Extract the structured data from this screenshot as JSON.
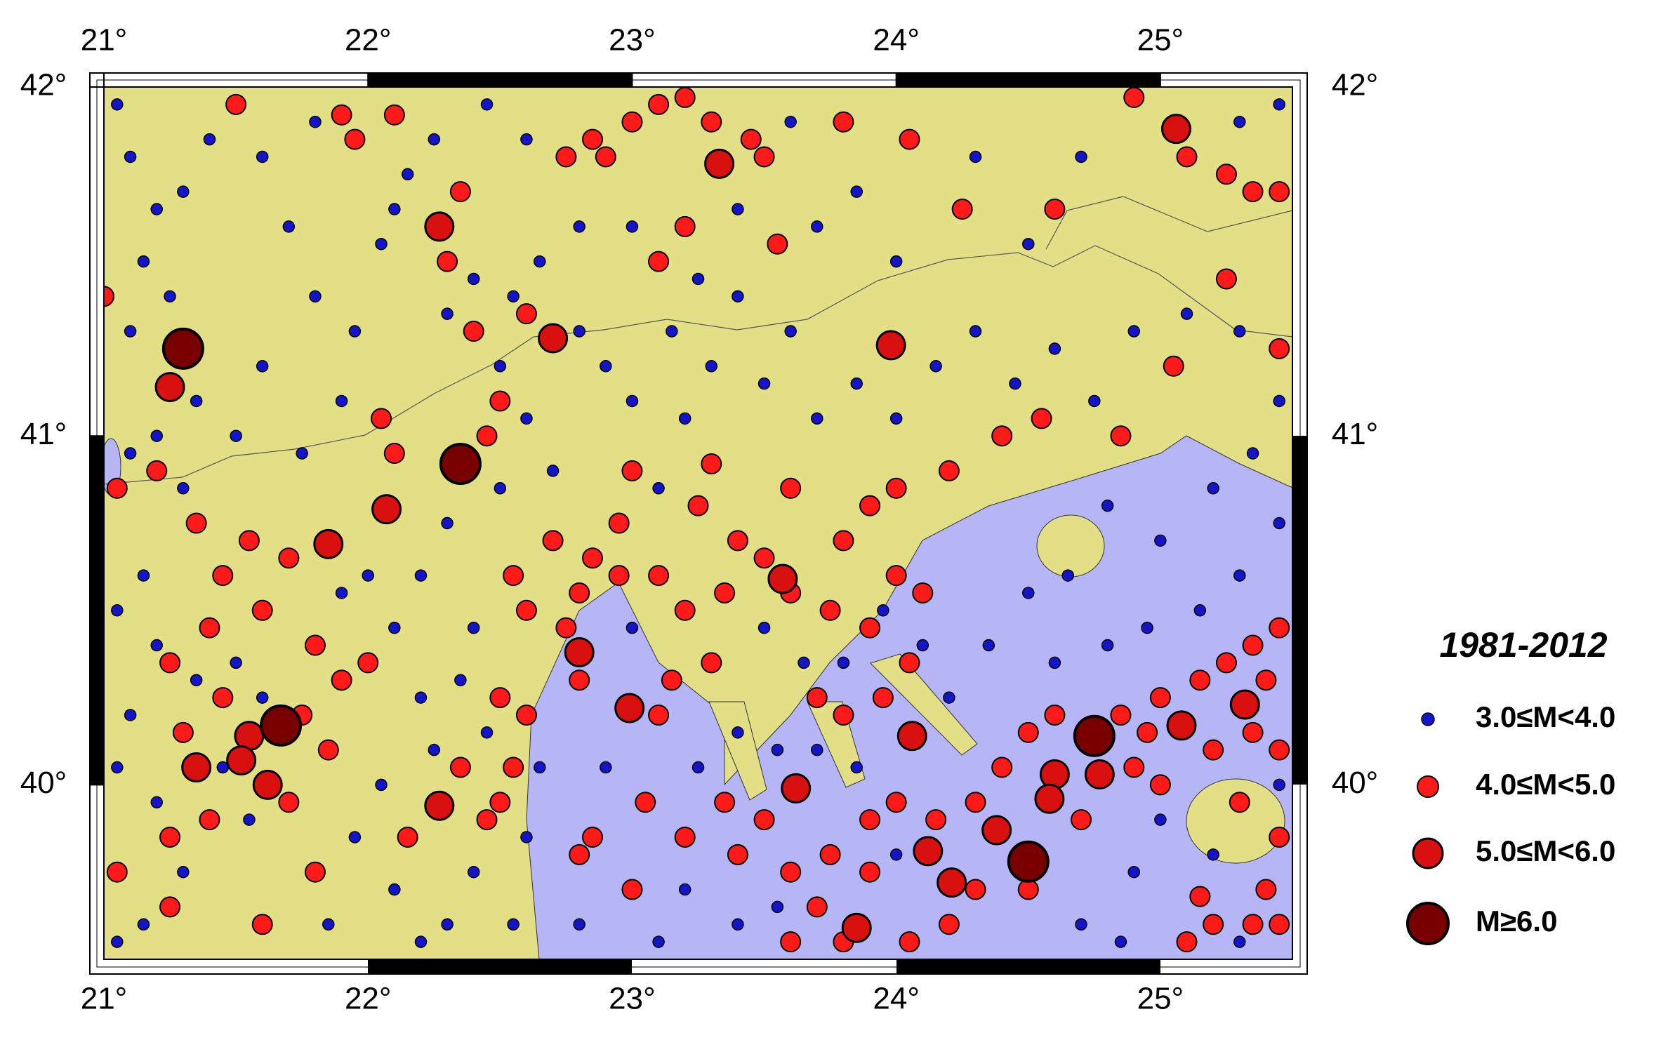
{
  "chart_data": {
    "type": "scatter",
    "legend_title": "1981-2012",
    "legend": "right",
    "xlim": [
      21,
      25.5
    ],
    "ylim": [
      39.5,
      42
    ],
    "xticks": [
      {
        "value": 21,
        "label": "21°"
      },
      {
        "value": 22,
        "label": "22°"
      },
      {
        "value": 23,
        "label": "23°"
      },
      {
        "value": 24,
        "label": "24°"
      },
      {
        "value": 25,
        "label": "25°"
      }
    ],
    "yticks": [
      {
        "value": 40,
        "label": "40°"
      },
      {
        "value": 41,
        "label": "41°"
      },
      {
        "value": 42,
        "label": "42°"
      }
    ],
    "series": [
      {
        "name": "3.0≤M<4.0",
        "color": "#1414c8",
        "x": [
          21.05,
          21.1,
          21.2,
          21.15,
          21.25,
          21.1,
          21.35,
          21.2,
          21.1,
          21.3,
          21.15,
          21.05,
          21.2,
          21.35,
          21.1,
          21.05,
          21.2,
          21.3,
          21.15,
          21.05,
          21.5,
          21.6,
          21.45,
          21.55,
          21.9,
          22.0,
          22.1,
          22.2,
          22.25,
          22.05,
          21.95,
          22.1,
          22.3,
          22.4,
          22.2,
          21.85,
          21.7,
          21.8,
          21.6,
          21.5,
          21.75,
          21.9,
          21.95,
          22.05,
          22.15,
          22.25,
          22.1,
          22.3,
          22.4,
          22.5,
          22.55,
          22.65,
          22.8,
          22.9,
          22.6,
          22.7,
          22.5,
          22.3,
          22.2,
          22.4,
          22.35,
          22.45,
          22.65,
          22.6,
          22.55,
          22.8,
          22.9,
          23.0,
          23.1,
          23.2,
          23.0,
          23.15,
          23.3,
          23.4,
          23.5,
          23.6,
          23.7,
          23.85,
          24.0,
          24.15,
          24.3,
          24.45,
          24.6,
          24.75,
          24.9,
          25.1,
          25.3,
          25.45,
          25.3,
          25.45,
          24.7,
          24.5,
          24.3,
          24.0,
          23.85,
          23.7,
          23.6,
          23.4,
          23.25,
          23.0,
          22.8,
          22.6,
          22.45,
          21.4,
          21.3,
          21.6,
          21.8,
          23.5,
          23.65,
          23.8,
          23.95,
          24.1,
          24.2,
          24.35,
          24.5,
          24.65,
          24.8,
          25.0,
          25.2,
          25.35,
          25.45,
          25.3,
          25.15,
          24.95,
          24.8,
          24.6,
          23.4,
          23.25,
          23.55,
          23.7,
          23.85,
          24.0,
          23.55,
          23.4,
          23.2,
          23.1,
          24.7,
          24.9,
          25.0,
          25.2,
          25.45,
          25.3,
          24.85
        ],
        "y": [
          41.95,
          41.8,
          41.65,
          41.5,
          41.4,
          41.3,
          41.1,
          41.0,
          40.95,
          40.85,
          40.6,
          40.5,
          40.4,
          40.3,
          40.2,
          40.05,
          39.95,
          39.75,
          39.6,
          39.55,
          40.35,
          40.25,
          40.05,
          39.9,
          40.55,
          40.6,
          40.45,
          40.25,
          40.1,
          40.0,
          39.85,
          39.7,
          39.6,
          39.75,
          39.55,
          39.6,
          41.6,
          41.4,
          41.2,
          41.0,
          40.95,
          41.1,
          41.3,
          41.55,
          41.75,
          41.85,
          41.65,
          41.35,
          41.45,
          41.2,
          41.4,
          41.5,
          41.3,
          41.2,
          41.05,
          40.9,
          40.85,
          40.75,
          40.6,
          40.45,
          40.3,
          40.15,
          40.05,
          39.85,
          39.6,
          39.6,
          40.05,
          40.45,
          40.85,
          41.05,
          41.1,
          41.3,
          41.2,
          41.4,
          41.15,
          41.3,
          41.05,
          41.15,
          41.05,
          41.2,
          41.3,
          41.15,
          41.25,
          41.1,
          41.3,
          41.35,
          41.3,
          41.1,
          41.9,
          41.95,
          41.8,
          41.55,
          41.8,
          41.5,
          41.7,
          41.6,
          41.9,
          41.65,
          41.45,
          41.6,
          41.6,
          41.85,
          41.95,
          41.85,
          41.7,
          41.8,
          41.9,
          40.45,
          40.35,
          40.35,
          40.5,
          40.4,
          40.25,
          40.4,
          40.55,
          40.6,
          40.8,
          40.7,
          40.85,
          40.95,
          40.75,
          40.6,
          40.5,
          40.45,
          40.4,
          40.35,
          40.15,
          40.05,
          40.1,
          40.1,
          40.05,
          39.8,
          39.65,
          39.6,
          39.7,
          39.55,
          39.6,
          39.75,
          39.9,
          39.8,
          40.0,
          39.55,
          39.55
        ]
      },
      {
        "name": "4.0≤M<5.0",
        "color": "#ff1a1a",
        "x": [
          21.0,
          21.05,
          21.2,
          21.35,
          21.45,
          21.55,
          21.7,
          21.6,
          21.4,
          21.25,
          21.8,
          21.9,
          21.75,
          21.45,
          21.3,
          21.85,
          21.7,
          21.4,
          21.25,
          21.8,
          21.6,
          21.25,
          21.05,
          22.0,
          22.1,
          22.05,
          22.45,
          22.5,
          22.4,
          22.6,
          22.35,
          22.3,
          21.95,
          21.9,
          22.1,
          21.5,
          22.75,
          22.85,
          23.0,
          23.1,
          23.2,
          23.3,
          23.45,
          23.5,
          22.9,
          23.2,
          23.1,
          23.55,
          23.8,
          24.05,
          24.25,
          24.6,
          24.9,
          25.1,
          25.25,
          25.35,
          25.45,
          25.25,
          25.05,
          25.45,
          24.85,
          24.55,
          24.4,
          24.2,
          24.0,
          23.9,
          23.6,
          23.3,
          23.25,
          23.0,
          22.95,
          22.85,
          22.7,
          22.55,
          22.6,
          22.8,
          22.95,
          23.1,
          23.2,
          23.35,
          23.4,
          23.5,
          23.6,
          23.75,
          23.8,
          24.0,
          24.1,
          23.9,
          24.05,
          23.95,
          23.8,
          23.7,
          23.3,
          23.15,
          23.1,
          22.8,
          22.75,
          22.6,
          22.5,
          22.5,
          22.55,
          22.35,
          22.15,
          22.45,
          22.8,
          22.85,
          23.05,
          23.0,
          23.2,
          23.35,
          23.4,
          23.5,
          23.6,
          23.75,
          23.7,
          23.9,
          23.9,
          24.0,
          24.15,
          24.3,
          24.4,
          24.5,
          24.6,
          24.7,
          24.5,
          24.3,
          24.2,
          24.05,
          23.8,
          23.6,
          24.9,
          24.95,
          25.0,
          25.15,
          25.25,
          25.35,
          25.45,
          25.4,
          25.35,
          25.2,
          25.45,
          25.3,
          25.4,
          25.45,
          25.35,
          25.2,
          25.1,
          25.15,
          25.45,
          25.0,
          24.85
        ],
        "y": [
          41.4,
          40.85,
          40.9,
          40.75,
          40.6,
          40.7,
          40.65,
          40.5,
          40.45,
          40.35,
          40.4,
          40.3,
          40.2,
          40.25,
          40.15,
          40.1,
          39.95,
          39.9,
          39.85,
          39.75,
          39.6,
          39.65,
          39.75,
          40.35,
          40.95,
          41.05,
          41.0,
          41.1,
          41.3,
          41.35,
          41.7,
          41.5,
          41.85,
          41.92,
          41.92,
          41.95,
          41.8,
          41.85,
          41.9,
          41.95,
          41.97,
          41.9,
          41.85,
          41.8,
          41.8,
          41.6,
          41.5,
          41.55,
          41.9,
          41.85,
          41.65,
          41.65,
          41.97,
          41.8,
          41.75,
          41.7,
          41.7,
          41.45,
          41.2,
          41.25,
          41.0,
          41.05,
          41.0,
          40.9,
          40.85,
          40.8,
          40.85,
          40.92,
          40.8,
          40.9,
          40.75,
          40.65,
          40.7,
          40.6,
          40.5,
          40.55,
          40.6,
          40.6,
          40.5,
          40.55,
          40.7,
          40.65,
          40.55,
          40.5,
          40.7,
          40.6,
          40.55,
          40.45,
          40.35,
          40.25,
          40.2,
          40.25,
          40.35,
          40.3,
          40.2,
          40.3,
          40.45,
          40.2,
          40.25,
          39.95,
          40.05,
          40.05,
          39.85,
          39.9,
          39.8,
          39.85,
          39.95,
          39.7,
          39.85,
          39.95,
          39.8,
          39.9,
          39.75,
          39.8,
          39.65,
          39.75,
          39.9,
          39.95,
          39.9,
          39.95,
          40.05,
          40.15,
          40.2,
          39.9,
          39.7,
          39.7,
          39.6,
          39.55,
          39.55,
          39.55,
          40.05,
          40.15,
          40.25,
          40.3,
          40.35,
          40.4,
          40.45,
          40.3,
          40.15,
          40.1,
          40.1,
          39.95,
          39.7,
          39.6,
          39.6,
          39.6,
          39.55,
          39.68,
          39.85,
          40.0,
          40.2
        ]
      },
      {
        "name": "5.0≤M<6.0",
        "color": "#d81010",
        "x": [
          22.27,
          22.7,
          23.33,
          25.06,
          23.98,
          21.25,
          22.07,
          21.85,
          23.57,
          22.8,
          22.99,
          21.55,
          21.35,
          21.52,
          21.62,
          22.27,
          23.62,
          24.06,
          24.6,
          24.77,
          24.58,
          24.38,
          24.12,
          24.21,
          23.85,
          25.08,
          25.32
        ],
        "y": [
          41.6,
          41.28,
          41.78,
          41.88,
          41.26,
          41.14,
          40.79,
          40.69,
          40.59,
          40.38,
          40.22,
          40.14,
          40.05,
          40.07,
          40.0,
          39.94,
          39.99,
          40.14,
          40.03,
          40.03,
          39.96,
          39.87,
          39.81,
          39.72,
          39.59,
          40.17,
          40.23
        ]
      },
      {
        "name": "M≥6.0",
        "color": "#780000",
        "x": [
          21.3,
          22.35,
          21.67,
          24.75,
          24.5
        ],
        "y": [
          41.25,
          40.92,
          40.17,
          40.14,
          39.78
        ]
      }
    ]
  }
}
